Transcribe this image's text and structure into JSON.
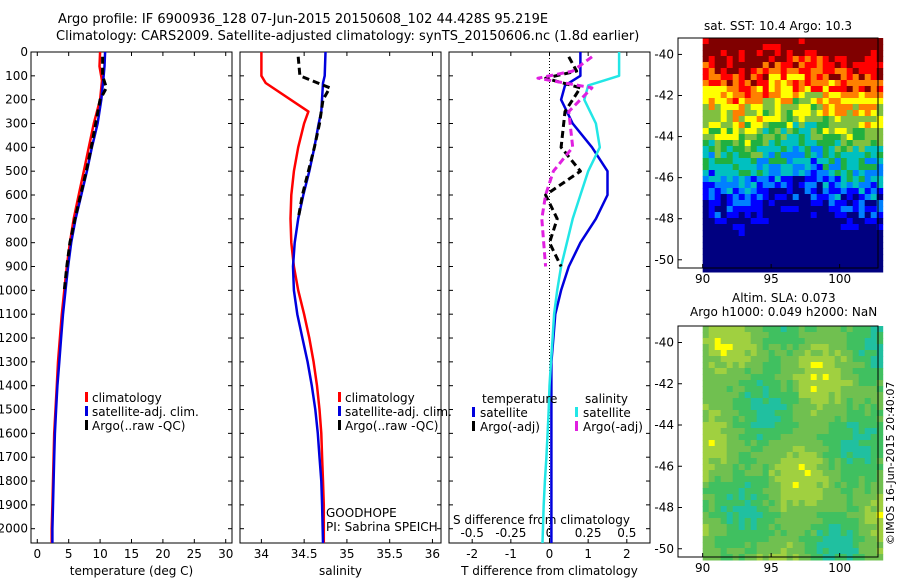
{
  "header": {
    "line1": "Argo profile: IF 6900936_128 07-Jun-2015 20150608_102 44.428S 95.219E",
    "line2": "Climatology: CARS2009. Satellite-adjusted climatology: synTS_20150606.nc (1.8d earlier)"
  },
  "colors": {
    "clim": "#ff0000",
    "sat": "#0000dd",
    "argo": "#000000",
    "sat_s": "#22e6e6",
    "argo_s": "#e020e0"
  },
  "chart_data": [
    {
      "type": "line",
      "id": "temperature",
      "xlabel": "temperature (deg C)",
      "ylabel": "",
      "xlim": [
        -1,
        31
      ],
      "ylim": [
        2060,
        0
      ],
      "xticks": [
        0,
        5,
        10,
        15,
        20,
        25,
        30
      ],
      "yticks": [
        0,
        100,
        200,
        300,
        400,
        500,
        600,
        700,
        800,
        900,
        1000,
        1100,
        1200,
        1300,
        1400,
        1500,
        1600,
        1700,
        1800,
        1900,
        2000
      ],
      "legend": [
        "climatology",
        "satellite-adj. clim.",
        "Argo(..raw -QC)"
      ],
      "legend_position": "lower-right",
      "series": [
        {
          "key": "clim",
          "x": [
            10.0,
            9.9,
            10.3,
            10.0,
            9.0,
            8.2,
            7.4,
            6.6,
            5.8,
            5.2,
            4.7,
            4.3,
            3.9,
            3.6,
            3.3,
            3.1,
            2.9,
            2.7,
            2.6,
            2.5,
            2.4,
            2.3,
            2.3
          ],
          "y": [
            0,
            60,
            120,
            200,
            300,
            400,
            500,
            600,
            700,
            800,
            900,
            1000,
            1100,
            1200,
            1300,
            1400,
            1500,
            1600,
            1700,
            1800,
            1900,
            2000,
            2060
          ]
        },
        {
          "key": "sat",
          "x": [
            10.8,
            10.7,
            10.5,
            10.2,
            9.6,
            8.7,
            7.9,
            7.0,
            6.1,
            5.4,
            4.9,
            4.5,
            4.1,
            3.8,
            3.5,
            3.2,
            3.0,
            2.8,
            2.7,
            2.6,
            2.5,
            2.4,
            2.4
          ],
          "y": [
            0,
            60,
            120,
            200,
            300,
            400,
            500,
            600,
            700,
            800,
            900,
            1000,
            1100,
            1200,
            1300,
            1400,
            1500,
            1600,
            1700,
            1800,
            1900,
            2000,
            2060
          ]
        },
        {
          "key": "argo",
          "dashed": true,
          "x": [
            10.4,
            10.4,
            11.0,
            10.0,
            9.3,
            8.6,
            7.8,
            6.9,
            6.0,
            5.2,
            4.7,
            4.3
          ],
          "y": [
            20,
            100,
            150,
            200,
            300,
            400,
            500,
            600,
            700,
            800,
            900,
            1000
          ]
        }
      ]
    },
    {
      "type": "line",
      "id": "salinity",
      "xlabel": "salinity",
      "xlim": [
        33.75,
        36.1
      ],
      "ylim": [
        2060,
        0
      ],
      "xticks": [
        34,
        34.5,
        35,
        35.5,
        36
      ],
      "legend": [
        "climatology",
        "satellite-adj. clim.",
        "Argo(..raw -QC)"
      ],
      "legend_position": "lower-right",
      "annotation": [
        "GOODHOPE",
        "PI: Sabrina SPEICH"
      ],
      "series": [
        {
          "key": "clim",
          "x": [
            34.0,
            34.0,
            34.05,
            34.55,
            34.5,
            34.43,
            34.38,
            34.35,
            34.34,
            34.35,
            34.38,
            34.43,
            34.5,
            34.56,
            34.61,
            34.65,
            34.68,
            34.7,
            34.71,
            34.72,
            34.73,
            34.73
          ],
          "y": [
            0,
            100,
            130,
            250,
            300,
            400,
            500,
            600,
            700,
            800,
            900,
            1000,
            1100,
            1200,
            1300,
            1400,
            1500,
            1600,
            1700,
            1800,
            1900,
            2060
          ]
        },
        {
          "key": "sat",
          "x": [
            34.75,
            34.74,
            34.72,
            34.7,
            34.67,
            34.62,
            34.56,
            34.49,
            34.43,
            34.39,
            34.37,
            34.38,
            34.42,
            34.48,
            34.54,
            34.59,
            34.63,
            34.66,
            34.68,
            34.7,
            34.71,
            34.72
          ],
          "y": [
            0,
            100,
            130,
            250,
            300,
            400,
            500,
            600,
            700,
            800,
            900,
            1000,
            1100,
            1200,
            1300,
            1400,
            1500,
            1600,
            1700,
            1800,
            1900,
            2060
          ]
        },
        {
          "key": "argo",
          "dashed": true,
          "x": [
            34.43,
            34.45,
            34.8,
            34.72,
            34.68,
            34.62,
            34.55,
            34.48,
            34.43
          ],
          "y": [
            20,
            100,
            150,
            200,
            300,
            400,
            500,
            600,
            700
          ]
        }
      ]
    },
    {
      "type": "line",
      "id": "difference",
      "xlabel": "T difference from climatology",
      "xlabel2": "S difference from climatology",
      "xlim": [
        -2.6,
        2.6
      ],
      "ylim": [
        2060,
        0
      ],
      "xticks": [
        -2,
        -1,
        0,
        1,
        2
      ],
      "xticks2_labels": [
        "-0.5",
        "-0.25",
        "0",
        "0.25",
        "0.5"
      ],
      "legend_temperature": {
        "title": "temperature",
        "items": [
          "satellite",
          "Argo(-adj)"
        ]
      },
      "legend_salinity": {
        "title": "salinity",
        "items": [
          "satellite",
          "Argo(-adj)"
        ]
      },
      "legend_position": "lower-right",
      "series": [
        {
          "key": "sat",
          "x": [
            0.8,
            0.8,
            0.4,
            0.3,
            0.6,
            1.1,
            1.5,
            1.5,
            1.2,
            0.8,
            0.5,
            0.3,
            0.15,
            0.1,
            0.05,
            0.05,
            0.05,
            0.05,
            0.05,
            0.05,
            0.05,
            0.05
          ],
          "y": [
            0,
            100,
            140,
            200,
            300,
            400,
            500,
            600,
            700,
            800,
            900,
            1000,
            1100,
            1200,
            1300,
            1400,
            1500,
            1600,
            1700,
            1800,
            1900,
            2060
          ]
        },
        {
          "key": "sat_s",
          "x": [
            1.8,
            1.8,
            1.0,
            0.9,
            1.2,
            1.3,
            1.0,
            0.8,
            0.6,
            0.45,
            0.3,
            0.2,
            0.12,
            0.08,
            0.04,
            0.0,
            -0.02,
            -0.05,
            -0.08,
            -0.12,
            -0.15,
            -0.18
          ],
          "y": [
            0,
            100,
            140,
            200,
            300,
            400,
            500,
            600,
            700,
            800,
            900,
            1000,
            1100,
            1200,
            1300,
            1400,
            1500,
            1600,
            1700,
            1800,
            1900,
            2060
          ]
        },
        {
          "key": "argo",
          "dashed": true,
          "x": [
            0.5,
            0.7,
            -0.1,
            0.8,
            0.4,
            0.3,
            0.8,
            -0.1,
            0.2,
            0.0,
            0.3
          ],
          "y": [
            20,
            80,
            110,
            150,
            250,
            400,
            500,
            600,
            700,
            800,
            900
          ]
        },
        {
          "key": "argo_s",
          "dashed": true,
          "x": [
            1.1,
            0.6,
            -0.3,
            1.1,
            0.5,
            0.6,
            0.1,
            -0.1,
            -0.2,
            -0.15,
            -0.1
          ],
          "y": [
            20,
            80,
            110,
            150,
            250,
            400,
            500,
            600,
            700,
            800,
            900
          ]
        }
      ]
    },
    {
      "type": "heatmap",
      "id": "sst",
      "title": "sat. SST: 10.4  Argo: 10.3",
      "xlim": [
        88.2,
        102.8
      ],
      "ylim": [
        -50.4,
        -39.2
      ],
      "xticks": [
        90,
        95,
        100
      ],
      "yticks": [
        -40,
        -42,
        -44,
        -46,
        -48,
        -50
      ],
      "colormap": [
        "#000080",
        "#0000ff",
        "#0080ff",
        "#00c0c0",
        "#20b040",
        "#80c040",
        "#ffff00",
        "#ff8000",
        "#ff0000",
        "#800000"
      ]
    },
    {
      "type": "heatmap",
      "id": "sla",
      "title": "Altim. SLA: 0.073",
      "subtitle": "Argo h1000: 0.049 h2000: NaN",
      "xlim": [
        88.2,
        102.8
      ],
      "ylim": [
        -50.4,
        -39.2
      ],
      "xticks": [
        90,
        95,
        100
      ],
      "yticks": [
        -40,
        -42,
        -44,
        -46,
        -48,
        -50
      ],
      "colormap": [
        "#20c0a0",
        "#40c060",
        "#70c050",
        "#a0d040",
        "#ffff00"
      ]
    }
  ],
  "credit": "©IMOS 16-Jun-2015 20:40:07"
}
